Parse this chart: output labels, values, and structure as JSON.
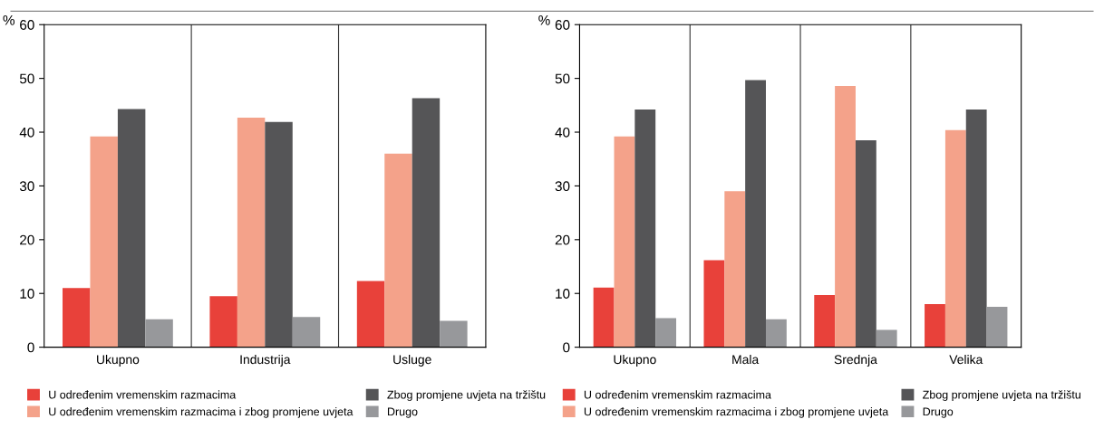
{
  "chart_data": [
    {
      "type": "bar",
      "ylabel": "%",
      "categories": [
        "Ukupno",
        "Industrija",
        "Usluge"
      ],
      "ylim": [
        0,
        60
      ],
      "yticks": [
        0,
        10,
        20,
        30,
        40,
        50,
        60
      ],
      "grid": "x",
      "legend": "bottom",
      "series": [
        {
          "name": "U određenim vremenskim razmacima",
          "color": "#e8413a",
          "values": [
            11.0,
            9.5,
            12.3
          ]
        },
        {
          "name": "U određenim vremenskim razmacima i zbog promjene uvjeta",
          "color": "#f4a28a",
          "values": [
            39.2,
            42.7,
            36.0
          ]
        },
        {
          "name": "Zbog promjene uvjeta na tržištu",
          "color": "#555557",
          "values": [
            44.3,
            41.9,
            46.3
          ]
        },
        {
          "name": "Drugo",
          "color": "#97989b",
          "values": [
            5.2,
            5.6,
            4.9
          ]
        }
      ]
    },
    {
      "type": "bar",
      "ylabel": "%",
      "categories": [
        "Ukupno",
        "Mala",
        "Srednja",
        "Velika"
      ],
      "ylim": [
        0,
        60
      ],
      "yticks": [
        0,
        10,
        20,
        30,
        40,
        50,
        60
      ],
      "grid": "x",
      "legend": "bottom",
      "series": [
        {
          "name": "U određenim vremenskim razmacima",
          "color": "#e8413a",
          "values": [
            11.1,
            16.2,
            9.7,
            8.0
          ]
        },
        {
          "name": "U određenim vremenskim razmacima i zbog promjene uvjeta",
          "color": "#f4a28a",
          "values": [
            39.2,
            29.0,
            48.6,
            40.4
          ]
        },
        {
          "name": "Zbog promjene uvjeta na tržištu",
          "color": "#555557",
          "values": [
            44.2,
            49.7,
            38.5,
            44.2
          ]
        },
        {
          "name": "Drugo",
          "color": "#97989b",
          "values": [
            5.4,
            5.2,
            3.2,
            7.5
          ]
        }
      ]
    }
  ]
}
